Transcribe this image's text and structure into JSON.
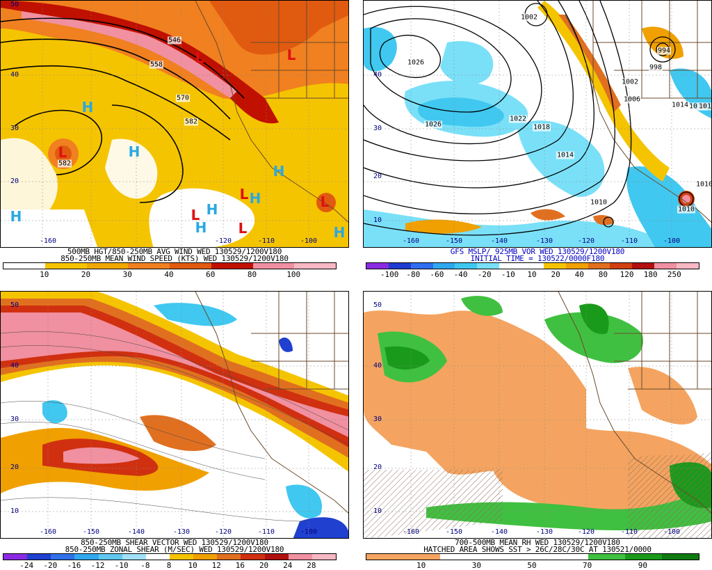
{
  "panels": [
    {
      "caption1": "500MB HGT/850-250MB AVG WIND WED 130529/1200V180",
      "caption2": "850-250MB MEAN WIND SPEED (KTS) WED 130529/1200V180",
      "caption3": "",
      "colorbar_ticks": [
        "10",
        "20",
        "30",
        "40",
        "60",
        "80",
        "100"
      ],
      "colorbar_colors": [
        "#ffffff",
        "#f5c400",
        "#f0a800",
        "#f08020",
        "#e05a10",
        "#c01000",
        "#f090a0",
        "#f7b8c4"
      ],
      "highs": [
        "H",
        "H",
        "H",
        "H",
        "H",
        "H",
        "H"
      ],
      "lows": [
        "L",
        "L",
        "L",
        "L",
        "L",
        "L",
        "L",
        "L"
      ],
      "contour_labels": [
        "546",
        "558",
        "570",
        "582",
        "582"
      ]
    },
    {
      "caption1": "GFS MSLP/ 925MB VOR WED 130529/1200V180",
      "caption2": "INITIAL TIME = 130522/0000F180",
      "caption3": "",
      "colorbar_ticks": [
        "-100",
        "-80",
        "-60",
        "-40",
        "-20",
        "-10",
        "10",
        "20",
        "40",
        "80",
        "120",
        "180",
        "250"
      ],
      "colorbar_colors": [
        "#8a2be2",
        "#1f3cd0",
        "#2e6ef0",
        "#30a8f0",
        "#40c8f0",
        "#7ae0f8",
        "#ffffff",
        "#ffffff",
        "#f5c400",
        "#f0a000",
        "#e07020",
        "#d04010",
        "#b01010",
        "#f090a0",
        "#f7b8c4"
      ],
      "contour_labels": [
        "1002",
        "1026",
        "1026",
        "1022",
        "1018",
        "1014",
        "1010",
        "1010",
        "1006",
        "1002",
        "998",
        "994",
        "1014",
        "1010",
        "1018",
        "1014"
      ]
    },
    {
      "caption1": "850-250MB SHEAR VECTOR WED 130529/1200V180",
      "caption2": "850-250MB ZONAL SHEAR (M/SEC) WED 130529/1200V180",
      "caption3": "",
      "colorbar_ticks": [
        "-24",
        "-20",
        "-16",
        "-12",
        "-10",
        "-8",
        "8",
        "10",
        "12",
        "16",
        "20",
        "24",
        "28"
      ],
      "colorbar_colors": [
        "#8a2be2",
        "#2040d0",
        "#3070e8",
        "#30a8f0",
        "#60c8f0",
        "#a0e0f8",
        "#ffffff",
        "#f5c400",
        "#f0a000",
        "#e07020",
        "#d03010",
        "#b01010",
        "#f090a0",
        "#f7b8c4"
      ]
    },
    {
      "caption1": "700-500MB MEAN RH WED 130529/1200V180",
      "caption2": "HATCHED AREA SHOWS SST > 26C/28C/30C AT 130521/0000",
      "caption3": "",
      "colorbar_ticks": [
        "10",
        "30",
        "50",
        "70",
        "90"
      ],
      "colorbar_colors": [
        "#f4a460",
        "#f4a460",
        "#ffffff",
        "#ffffff",
        "#ffffff",
        "#ffffff",
        "#40c040",
        "#1a9a1a",
        "#0f7a0f"
      ]
    }
  ],
  "axes": {
    "lat_labels": [
      "50",
      "40",
      "30",
      "20",
      "10"
    ],
    "lon_labels": [
      "-160",
      "-150",
      "-140",
      "-130",
      "-120",
      "-110",
      "-100"
    ]
  }
}
